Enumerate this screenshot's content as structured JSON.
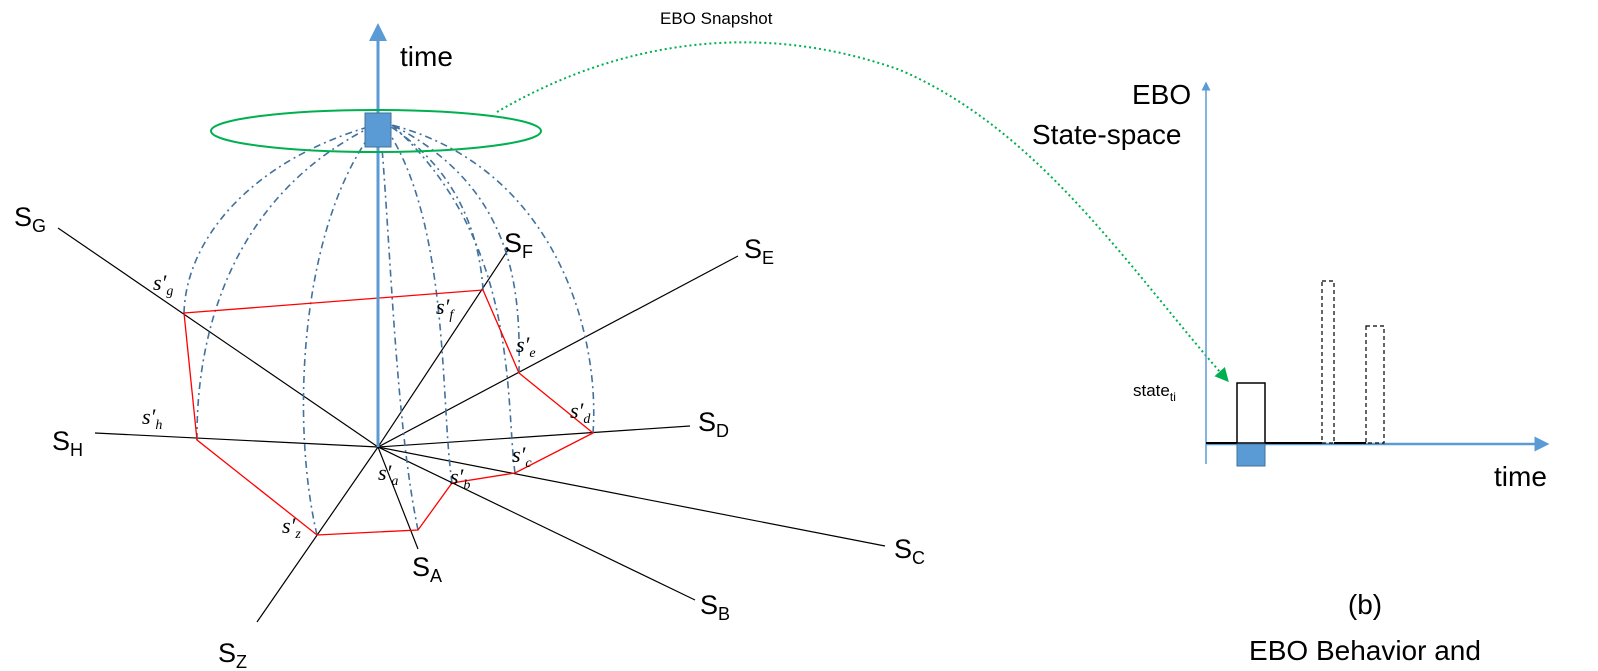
{
  "figure_a": {
    "time_label": "time",
    "snapshot_label": "EBO Snapshot",
    "axes": [
      {
        "base": "S",
        "sub": "G"
      },
      {
        "base": "S",
        "sub": "F"
      },
      {
        "base": "S",
        "sub": "E"
      },
      {
        "base": "S",
        "sub": "D"
      },
      {
        "base": "S",
        "sub": "C"
      },
      {
        "base": "S",
        "sub": "B"
      },
      {
        "base": "S",
        "sub": "A"
      },
      {
        "base": "S",
        "sub": "Z"
      },
      {
        "base": "S",
        "sub": "H"
      }
    ],
    "points": [
      {
        "base": "s′",
        "sub": "g"
      },
      {
        "base": "s′",
        "sub": "f"
      },
      {
        "base": "s′",
        "sub": "e"
      },
      {
        "base": "s′",
        "sub": "d"
      },
      {
        "base": "s′",
        "sub": "c"
      },
      {
        "base": "s′",
        "sub": "b"
      },
      {
        "base": "s′",
        "sub": "a"
      },
      {
        "base": "s′",
        "sub": "z"
      },
      {
        "base": "s′",
        "sub": "h"
      }
    ]
  },
  "figure_b": {
    "y_label_line1": "EBO",
    "y_label_line2": "State-space",
    "x_label": "time",
    "state_label_base": "state",
    "state_label_sub": "ti",
    "caption_id": "(b)",
    "caption_line1": "EBO Behavior and"
  },
  "colors": {
    "axis_blue": "#5b9bd5",
    "snapshot_green": "#00b050",
    "polygon_red": "#ff0000",
    "dash_blue": "#41719c",
    "marker_fill": "#5b9bd5"
  }
}
